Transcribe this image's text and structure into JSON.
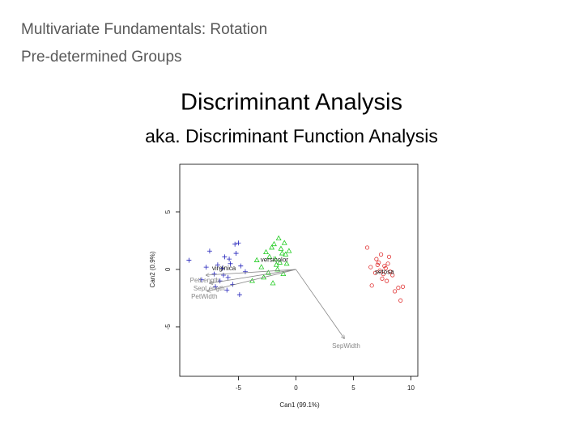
{
  "header": {
    "line1": "Multivariate Fundamentals: Rotation",
    "line2": "Pre-determined Groups"
  },
  "title": "Discriminant Analysis",
  "subtitle": "aka. Discriminant Function Analysis",
  "chart_data": {
    "type": "scatter",
    "xlabel": "Can1 (99.1%)",
    "ylabel": "Can2 (0.9%)",
    "xlim": [
      -10.1,
      10.6
    ],
    "ylim": [
      -9.3,
      9.15
    ],
    "xticks": [
      -5,
      0,
      5,
      10
    ],
    "yticks": [
      -5,
      0,
      5
    ],
    "series": [
      {
        "name": "setosa",
        "color": "#e03030",
        "marker": "circle",
        "x": [
          7.2,
          7.8,
          6.9,
          8.1,
          7.5,
          7.0,
          8.4,
          7.7,
          6.6,
          8.9,
          9.3,
          7.3,
          8.0,
          6.5,
          7.9,
          7.4,
          8.6,
          9.1,
          7.6,
          6.2,
          8.2,
          7.1
        ],
        "y": [
          0.6,
          0.1,
          -0.3,
          1.1,
          -0.8,
          0.9,
          -0.5,
          0.3,
          -1.4,
          -1.6,
          -1.5,
          -0.1,
          0.5,
          0.2,
          -1.0,
          1.3,
          -1.9,
          -2.7,
          -0.4,
          1.9,
          -0.2,
          0.4
        ]
      },
      {
        "name": "versicolor",
        "color": "#22cc22",
        "marker": "triangle",
        "x": [
          -1.5,
          -2.1,
          -1.2,
          -1.8,
          -2.6,
          -0.9,
          -1.4,
          -3.0,
          -1.7,
          -2.3,
          -1.1,
          -2.8,
          -1.9,
          -0.6,
          -3.4,
          -1.6,
          -2.0,
          -1.3,
          -0.8,
          -2.4,
          -3.8,
          -1.0
        ],
        "y": [
          2.7,
          1.9,
          1.4,
          0.9,
          1.5,
          1.3,
          0.6,
          0.2,
          0.4,
          1.1,
          -0.4,
          -0.7,
          2.2,
          1.6,
          0.8,
          0.0,
          -1.2,
          1.8,
          0.5,
          -0.3,
          -1.0,
          2.3
        ]
      },
      {
        "name": "virginica",
        "color": "#2222bb",
        "marker": "plus",
        "x": [
          -9.3,
          -7.8,
          -5.3,
          -5.0,
          -6.2,
          -5.7,
          -7.1,
          -6.6,
          -4.8,
          -5.9,
          -7.5,
          -6.0,
          -4.4,
          -6.8,
          -5.5,
          -8.2,
          -5.2,
          -6.4,
          -4.9,
          -7.0,
          -5.8,
          -6.3
        ],
        "y": [
          0.8,
          0.2,
          2.2,
          2.3,
          1.1,
          0.5,
          -0.4,
          -1.0,
          0.3,
          -0.7,
          1.6,
          -1.8,
          -0.2,
          0.4,
          -1.3,
          -0.9,
          1.4,
          0.1,
          -2.2,
          -1.5,
          0.9,
          -0.5
        ]
      }
    ],
    "vectors": [
      {
        "name": "PetLength",
        "x": -7.8,
        "y": -0.5
      },
      {
        "name": "SepLength",
        "x": -7.5,
        "y": -1.2
      },
      {
        "name": "PetWidth",
        "x": -7.7,
        "y": -1.9
      },
      {
        "name": "SepWidth",
        "x": 4.2,
        "y": -6.0
      }
    ],
    "vector_color": "#888888"
  }
}
